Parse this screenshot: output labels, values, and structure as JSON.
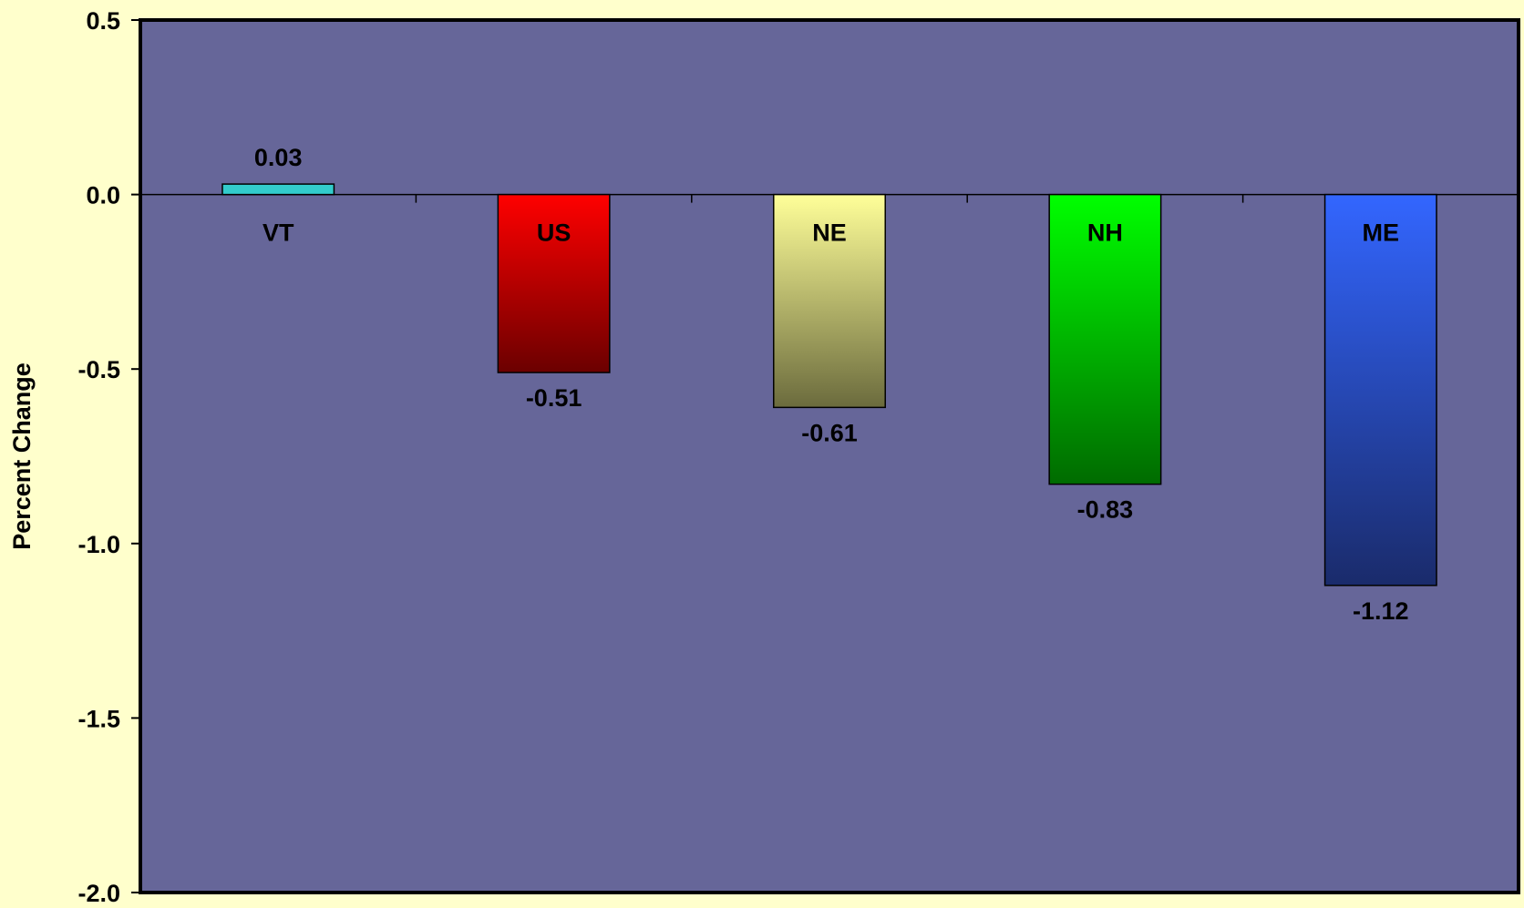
{
  "chart_data": {
    "type": "bar",
    "categories": [
      "VT",
      "US",
      "NE",
      "NH",
      "ME"
    ],
    "values": [
      0.03,
      -0.51,
      -0.61,
      -0.83,
      -1.12
    ],
    "value_labels": [
      "0.03",
      "-0.51",
      "-0.61",
      "-0.83",
      "-1.12"
    ],
    "title": "",
    "xlabel": "",
    "ylabel": "Percent Change",
    "ylim": [
      -2.0,
      0.5
    ],
    "yticks": [
      0.5,
      0.0,
      -0.5,
      -1.0,
      -1.5,
      -2.0
    ],
    "ytick_labels": [
      "0.5",
      "0.0",
      "-0.5",
      "-1.0",
      "-1.5",
      "-2.0"
    ],
    "grid": false,
    "legend": "none",
    "colors": {
      "page_background": "#FFFFCC",
      "plot_background": "#666699",
      "bars": [
        {
          "top": "#33CCCC",
          "bottom": "#33CCCC"
        },
        {
          "top": "#FF0000",
          "bottom": "#6B0000"
        },
        {
          "top": "#FFFF99",
          "bottom": "#6B6B3D"
        },
        {
          "top": "#00FF00",
          "bottom": "#006B00"
        },
        {
          "top": "#3366FF",
          "bottom": "#1A2B6B"
        }
      ]
    }
  }
}
